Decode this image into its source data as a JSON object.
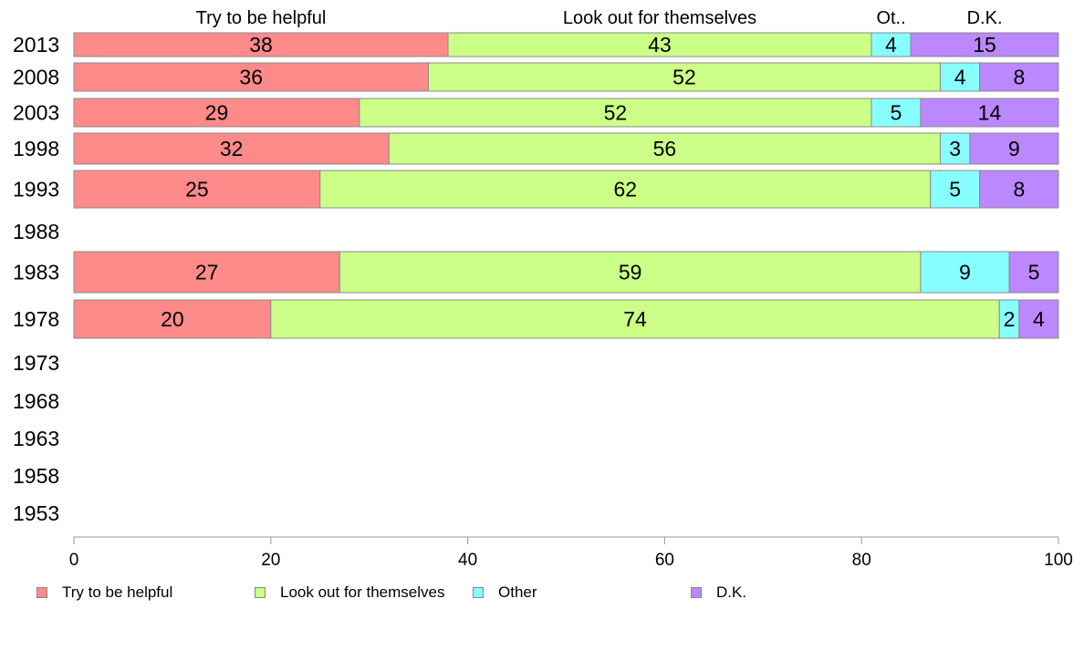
{
  "chart_data": {
    "type": "bar",
    "orientation": "horizontal",
    "stacked": true,
    "categories": [
      "2013",
      "2008",
      "2003",
      "1998",
      "1993",
      "1988",
      "1983",
      "1978",
      "1973",
      "1968",
      "1963",
      "1958",
      "1953"
    ],
    "series": [
      {
        "name": "Try to be helpful",
        "color": "#ff8a8a",
        "values": [
          38,
          36,
          29,
          32,
          25,
          null,
          27,
          20,
          null,
          null,
          null,
          null,
          null
        ]
      },
      {
        "name": "Look out for themselves",
        "color": "#ccff88",
        "values": [
          43,
          52,
          52,
          56,
          62,
          null,
          59,
          74,
          null,
          null,
          null,
          null,
          null
        ]
      },
      {
        "name": "Other",
        "color": "#88ffff",
        "values": [
          4,
          4,
          5,
          3,
          5,
          null,
          9,
          2,
          null,
          null,
          null,
          null,
          null
        ]
      },
      {
        "name": "D.K.",
        "color": "#bb88ff",
        "values": [
          15,
          8,
          14,
          9,
          8,
          null,
          5,
          4,
          null,
          null,
          null,
          null,
          null
        ]
      }
    ],
    "top_labels": [
      "Try to be helpful",
      "Look out for themselves",
      "Ot..",
      "D.K."
    ],
    "x_ticks": [
      0,
      20,
      40,
      60,
      80,
      100
    ],
    "xlim": [
      0,
      100
    ],
    "grid": false,
    "legend_position": "bottom"
  }
}
